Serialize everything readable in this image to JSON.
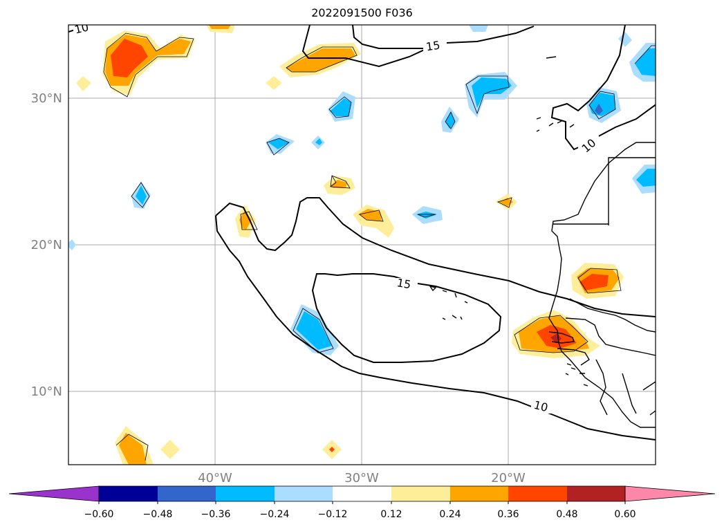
{
  "title": "2022091500 F036",
  "lat_labels": [
    "30°N",
    "20°N",
    "10°N"
  ],
  "lon_labels": [
    "40°W",
    "30°W",
    "20°W"
  ],
  "contour_labels": [
    "10",
    "15",
    "15",
    "10",
    "10"
  ],
  "colorbar": {
    "colors": [
      "#9933cc",
      "#000099",
      "#3366cc",
      "#00bbff",
      "#aaddff",
      "#ffffff",
      "#ffee99",
      "#ffa500",
      "#ff4500",
      "#b22222",
      "#ff88aa"
    ],
    "ticks": [
      "−0.60",
      "−0.48",
      "−0.36",
      "−0.24",
      "−0.12",
      "0.12",
      "0.24",
      "0.36",
      "0.48",
      "0.60"
    ]
  }
}
